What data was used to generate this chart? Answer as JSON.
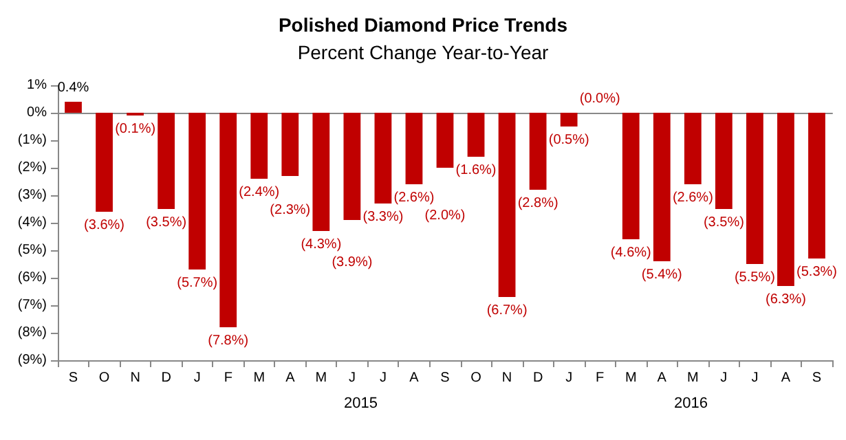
{
  "chart_data": {
    "type": "bar",
    "title": "Polished Diamond Price Trends",
    "subtitle": "Percent Change Year-to-Year",
    "categories": [
      "S",
      "O",
      "N",
      "D",
      "J",
      "F",
      "M",
      "A",
      "M",
      "J",
      "J",
      "A",
      "S",
      "O",
      "N",
      "D",
      "J",
      "F",
      "M",
      "A",
      "M",
      "J",
      "J",
      "A",
      "S"
    ],
    "values": [
      0.4,
      -3.6,
      -0.1,
      -3.5,
      -5.7,
      -7.8,
      -2.4,
      -2.3,
      -4.3,
      -3.9,
      -3.3,
      -2.6,
      -2.0,
      -1.6,
      -6.7,
      -2.8,
      -0.5,
      0.0,
      -4.6,
      -5.4,
      -2.6,
      -3.5,
      -5.5,
      -6.3,
      -5.3
    ],
    "value_labels": [
      "0.4%",
      "(3.6%)",
      "(0.1%)",
      "(3.5%)",
      "(5.7%)",
      "(7.8%)",
      "(2.4%)",
      "(2.3%)",
      "(4.3%)",
      "(3.9%)",
      "(3.3%)",
      "(2.6%)",
      "(2.0%)",
      "(1.6%)",
      "(6.7%)",
      "(2.8%)",
      "(0.5%)",
      "(0.0%)",
      "(4.6%)",
      "(5.4%)",
      "(2.6%)",
      "(3.5%)",
      "(5.5%)",
      "(6.3%)",
      "(5.3%)"
    ],
    "color": "#c00000",
    "ylim": [
      -9,
      1
    ],
    "yticks": [
      {
        "value": -9,
        "label": "(9%)"
      },
      {
        "value": -8,
        "label": "(8%)"
      },
      {
        "value": -7,
        "label": "(7%)"
      },
      {
        "value": -6,
        "label": "(6%)"
      },
      {
        "value": -5,
        "label": "(5%)"
      },
      {
        "value": -4,
        "label": "(4%)"
      },
      {
        "value": -3,
        "label": "(3%)"
      },
      {
        "value": -2,
        "label": "(2%)"
      },
      {
        "value": -1,
        "label": "(1%)"
      },
      {
        "value": 0,
        "label": "0%"
      },
      {
        "value": 1,
        "label": "1%"
      }
    ],
    "annotations": [
      "2015",
      "2016"
    ]
  }
}
